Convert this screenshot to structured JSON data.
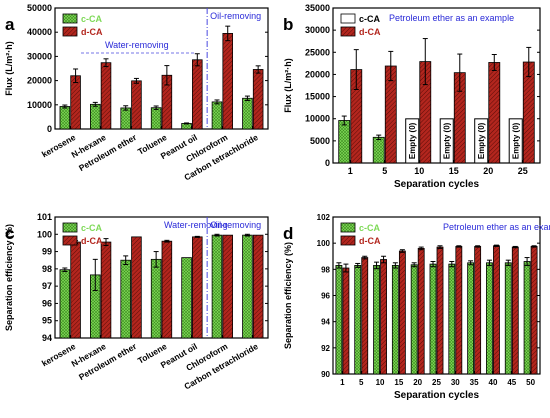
{
  "colors": {
    "c_CA": "#7ed957",
    "d_CA": "#b3261e",
    "empty_bar": "#ffffff",
    "annotation": "#2a2ad8",
    "divider": "#4a4ae0"
  },
  "chart_data": [
    {
      "panel_label": "a",
      "type": "bar",
      "ylabel": "Flux (L/m²·h)",
      "ylim": [
        0,
        50000
      ],
      "yticks": [
        "0",
        "10000",
        "20000",
        "30000",
        "40000",
        "50000"
      ],
      "categories": [
        "kerosene",
        "N-hexane",
        "Petroleum ether",
        "Toluene",
        "Peanut oil",
        "Chloroform",
        "Carbon tetrachloride"
      ],
      "series": [
        {
          "name": "c-CA",
          "values": [
            9300,
            10200,
            8700,
            8800,
            2300,
            11200,
            12700
          ],
          "errors": [
            600,
            800,
            900,
            700,
            200,
            800,
            900
          ]
        },
        {
          "name": "d-CA",
          "values": [
            22000,
            27400,
            19900,
            22200,
            28600,
            39500,
            24600
          ],
          "errors": [
            2800,
            1600,
            1000,
            4000,
            2500,
            3000,
            1500
          ]
        }
      ],
      "legend": {
        "position": "top-left",
        "entries": [
          "c-CA",
          "d-CA"
        ]
      },
      "annotations": [
        "Water-removing",
        "Oil-removing"
      ],
      "divider_after_category": 4
    },
    {
      "panel_label": "b",
      "type": "bar",
      "title": "Petroleum ether as an example",
      "xlabel": "Separation cycles",
      "ylabel": "Flux (L/m²·h)",
      "ylim": [
        0,
        35000
      ],
      "yticks": [
        "0",
        "5000",
        "10000",
        "15000",
        "20000",
        "25000",
        "30000",
        "35000"
      ],
      "categories": [
        "1",
        "5",
        "10",
        "15",
        "20",
        "25"
      ],
      "series": [
        {
          "name": "c-CA",
          "values": [
            9600,
            5800,
            0,
            0,
            0,
            0
          ],
          "errors": [
            1000,
            500,
            0,
            0,
            0,
            0
          ]
        },
        {
          "name": "d-CA",
          "values": [
            21100,
            21900,
            22900,
            20400,
            22700,
            22800
          ],
          "errors": [
            4500,
            3300,
            5200,
            4200,
            1800,
            3300
          ]
        }
      ],
      "empty_label": "Empty (0)",
      "legend": {
        "position": "top-left",
        "entries": [
          "c-CA",
          "d-CA"
        ]
      }
    },
    {
      "panel_label": "c",
      "type": "bar",
      "ylabel": "Separation efficiency (%)",
      "ylim": [
        94,
        101
      ],
      "yticks": [
        "94",
        "95",
        "96",
        "97",
        "98",
        "99",
        "100",
        "101"
      ],
      "categories": [
        "kerosene",
        "N-hexane",
        "Petroleum ether",
        "Toluene",
        "Peanut oil",
        "Chloroform",
        "Carbon tetrachloride"
      ],
      "series": [
        {
          "name": "c-CA",
          "values": [
            97.95,
            97.65,
            98.5,
            98.55,
            98.65,
            99.95,
            99.95
          ],
          "errors": [
            0.1,
            0.9,
            0.25,
            0.45,
            0,
            0.05,
            0.05
          ]
        },
        {
          "name": "d-CA",
          "values": [
            99.55,
            99.55,
            99.85,
            99.6,
            99.85,
            99.95,
            99.95
          ],
          "errors": [
            0.08,
            0.2,
            0,
            0.05,
            0.03,
            0,
            0
          ]
        }
      ],
      "legend": {
        "position": "top-left",
        "entries": [
          "c-CA",
          "d-CA"
        ]
      },
      "annotations": [
        "Water-removing",
        "Oil-removing"
      ],
      "divider_after_category": 4
    },
    {
      "panel_label": "d",
      "type": "bar",
      "title": "Petroleum ether as an example",
      "xlabel": "Separation cycles",
      "ylabel": "Separation efficiency (%)",
      "ylim": [
        90,
        102
      ],
      "yticks": [
        "90",
        "92",
        "94",
        "96",
        "98",
        "100",
        "102"
      ],
      "categories": [
        "1",
        "5",
        "10",
        "15",
        "20",
        "25",
        "30",
        "35",
        "40",
        "45",
        "50"
      ],
      "series": [
        {
          "name": "c-CA",
          "values": [
            98.3,
            98.3,
            98.3,
            98.3,
            98.35,
            98.4,
            98.4,
            98.5,
            98.5,
            98.5,
            98.6
          ],
          "errors": [
            0.2,
            0.15,
            0.25,
            0.2,
            0.15,
            0.2,
            0.2,
            0.15,
            0.2,
            0.2,
            0.3
          ]
        },
        {
          "name": "d-CA",
          "values": [
            98.1,
            98.9,
            98.75,
            99.4,
            99.6,
            99.7,
            99.75,
            99.75,
            99.8,
            99.7,
            99.75
          ],
          "errors": [
            0.3,
            0.1,
            0.25,
            0.1,
            0.1,
            0.1,
            0.05,
            0.05,
            0.05,
            0.05,
            0.05
          ]
        }
      ],
      "legend": {
        "position": "top-left",
        "entries": [
          "c-CA",
          "d-CA"
        ]
      }
    }
  ]
}
